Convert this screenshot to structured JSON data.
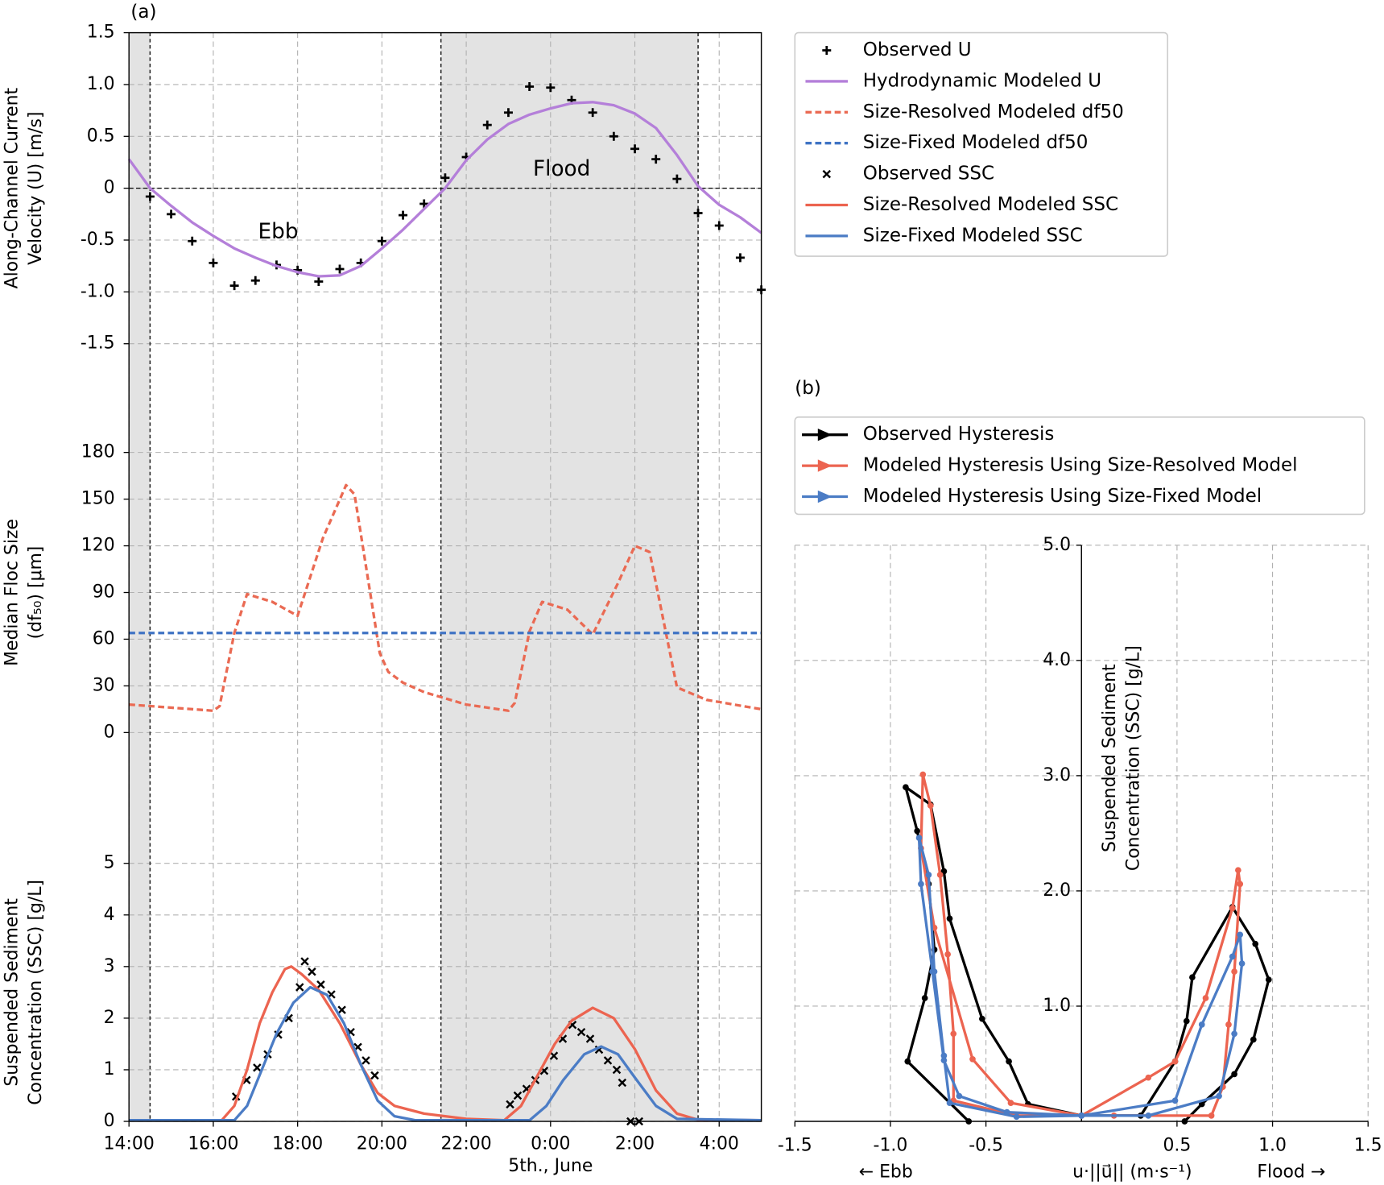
{
  "chart_data": [
    {
      "type": "line",
      "panel_label": "(a)",
      "ylabel": [
        "Along-Channel Current",
        "Velocity (U) [m/s]"
      ],
      "annotations": [
        "Ebb",
        "Flood"
      ],
      "xlim": [
        14,
        29
      ],
      "ylim": [
        -1.5,
        1.5
      ],
      "yticks": [
        1.5,
        {
          "value": 1,
          "label": "1.0"
        },
        0.5,
        0,
        -0.5,
        {
          "value": -1,
          "label": "-1.0"
        },
        -1.5
      ],
      "shaded_spans": [
        [
          14,
          14.5
        ],
        [
          21.4,
          27.5
        ]
      ],
      "vlines": [
        14.5,
        21.4,
        27.5
      ],
      "hline": 0,
      "grid": true,
      "legend": "right",
      "series": [
        {
          "name": "Observed U",
          "color": "#000000",
          "marker": "+",
          "x": [
            14.5,
            15,
            15.5,
            16,
            16.5,
            17,
            17.5,
            18,
            18.5,
            19,
            19.5,
            20,
            20.5,
            21,
            21.5,
            22,
            22.5,
            23,
            23.5,
            24,
            24.5,
            25,
            25.5,
            26,
            26.5,
            27,
            27.5,
            28,
            28.5,
            29
          ],
          "values": [
            -0.08,
            -0.25,
            -0.51,
            -0.72,
            -0.94,
            -0.89,
            -0.74,
            -0.79,
            -0.9,
            -0.78,
            -0.72,
            -0.51,
            -0.26,
            -0.15,
            0.1,
            0.3,
            0.61,
            0.73,
            0.98,
            0.97,
            0.85,
            0.73,
            0.5,
            0.38,
            0.28,
            0.09,
            -0.24,
            -0.36,
            -0.67,
            -0.98
          ]
        },
        {
          "name": "Hydrodynamic Modeled U",
          "color": "#b47fd9",
          "line": "solid",
          "x": [
            14,
            14.5,
            15,
            15.5,
            16,
            16.5,
            17,
            17.5,
            18,
            18.5,
            19,
            19.5,
            20,
            20.5,
            21,
            21.5,
            22,
            22.5,
            23,
            23.5,
            24,
            24.5,
            25,
            25.5,
            26,
            26.5,
            27,
            27.5,
            28,
            28.5,
            29
          ],
          "values": [
            0.28,
            0.0,
            -0.17,
            -0.33,
            -0.46,
            -0.58,
            -0.67,
            -0.75,
            -0.81,
            -0.85,
            -0.84,
            -0.75,
            -0.58,
            -0.4,
            -0.2,
            0.0,
            0.27,
            0.47,
            0.62,
            0.71,
            0.77,
            0.82,
            0.83,
            0.8,
            0.72,
            0.58,
            0.32,
            0.02,
            -0.16,
            -0.28,
            -0.43
          ]
        }
      ]
    },
    {
      "type": "line",
      "ylabel": [
        "Median Floc Size",
        "(df₅₀) [μm]"
      ],
      "xlim": [
        14,
        29
      ],
      "ylim": [
        0,
        180
      ],
      "yticks": [
        0,
        30,
        60,
        90,
        120,
        150,
        180
      ],
      "grid": true,
      "series": [
        {
          "name": "Size-Resolved Modeled df50",
          "color": "#ea6a53",
          "line": "dashed",
          "x": [
            14,
            16,
            16.15,
            16.5,
            16.8,
            17.4,
            18,
            18.6,
            19.15,
            19.35,
            19.95,
            20.15,
            20.5,
            21,
            22,
            23,
            23.15,
            23.5,
            23.8,
            24.4,
            25,
            25.6,
            26,
            26.35,
            27,
            27.7,
            29
          ],
          "values": [
            18,
            14,
            17,
            64,
            89,
            84,
            75,
            125,
            159,
            153,
            51,
            39,
            32,
            26,
            18,
            14,
            19,
            65,
            84,
            79,
            63,
            96,
            120,
            116,
            29,
            21,
            15
          ]
        },
        {
          "name": "Size-Fixed Modeled df50",
          "color": "#3f73c4",
          "line": "dashed",
          "x": [
            14,
            29
          ],
          "values": [
            64,
            64
          ]
        }
      ]
    },
    {
      "type": "line",
      "ylabel": [
        "Suspended Sediment",
        "Concentration (SSC) [g/L]"
      ],
      "xlabel": "5th., June",
      "xlim": [
        14,
        29
      ],
      "ylim": [
        0,
        5
      ],
      "yticks": [
        0,
        1,
        2,
        3,
        4,
        5
      ],
      "xticks": [
        {
          "value": 14,
          "label": "14:00"
        },
        {
          "value": 16,
          "label": "16:00"
        },
        {
          "value": 18,
          "label": "18:00"
        },
        {
          "value": 20,
          "label": "20:00"
        },
        {
          "value": 22,
          "label": "22:00"
        },
        {
          "value": 24,
          "label": "0:00"
        },
        {
          "value": 26,
          "label": "2:00"
        },
        {
          "value": 28,
          "label": "4:00"
        }
      ],
      "grid": true,
      "series": [
        {
          "name": "Observed SSC",
          "color": "#000000",
          "marker": "x",
          "x": [
            16.54,
            16.79,
            17.04,
            17.29,
            17.54,
            17.79,
            18.05,
            18.17,
            18.34,
            18.55,
            18.8,
            19.05,
            19.26,
            19.43,
            19.62,
            19.83,
            23.04,
            23.22,
            23.43,
            23.64,
            23.85,
            24.08,
            24.29,
            24.52,
            24.73,
            24.94,
            25.15,
            25.36,
            25.57,
            25.7,
            25.9,
            26.1
          ],
          "values": [
            0.48,
            0.8,
            1.04,
            1.3,
            1.68,
            2.0,
            2.6,
            3.1,
            2.9,
            2.65,
            2.46,
            2.16,
            1.73,
            1.44,
            1.18,
            0.89,
            0.33,
            0.5,
            0.63,
            0.8,
            0.98,
            1.27,
            1.6,
            1.87,
            1.73,
            1.6,
            1.39,
            1.18,
            1.0,
            0.75,
            0,
            0
          ]
        },
        {
          "name": "Size-Resolved Modeled SSC",
          "color": "#ec6450",
          "line": "solid",
          "x": [
            14,
            16.2,
            16.5,
            16.8,
            17.1,
            17.4,
            17.7,
            17.85,
            18.1,
            18.5,
            19,
            19.5,
            19.9,
            20.3,
            21,
            22,
            22.9,
            23.3,
            23.7,
            24.1,
            24.5,
            25,
            25.5,
            26,
            26.5,
            27,
            27.5,
            29
          ],
          "values": [
            0.02,
            0.02,
            0.3,
            1.0,
            1.9,
            2.5,
            2.95,
            3.0,
            2.85,
            2.55,
            1.9,
            1.1,
            0.55,
            0.3,
            0.15,
            0.05,
            0.02,
            0.3,
            0.9,
            1.5,
            1.95,
            2.2,
            2.0,
            1.4,
            0.6,
            0.15,
            0.03,
            0.02
          ]
        },
        {
          "name": "Size-Fixed Modeled SSC",
          "color": "#4b7cc5",
          "line": "solid",
          "x": [
            14,
            16.5,
            16.8,
            17.1,
            17.5,
            17.9,
            18.3,
            18.7,
            19.1,
            19.5,
            19.9,
            20.3,
            20.8,
            23.5,
            23.9,
            24.3,
            24.8,
            25.2,
            25.6,
            26,
            26.5,
            27,
            29
          ],
          "values": [
            0.02,
            0.02,
            0.3,
            0.9,
            1.7,
            2.3,
            2.6,
            2.45,
            1.9,
            1.1,
            0.4,
            0.1,
            0.02,
            0.02,
            0.3,
            0.8,
            1.3,
            1.45,
            1.3,
            0.85,
            0.3,
            0.05,
            0.02
          ]
        }
      ]
    },
    {
      "type": "line",
      "panel_label": "(b)",
      "xlabel": "u·||u⃗|| (m·s⁻¹)",
      "side_labels": [
        "←  Ebb",
        "Flood →"
      ],
      "ylabel": [
        "Suspended Sediment",
        "Concentration (SSC) [g/L]"
      ],
      "xlim": [
        -1.5,
        1.5
      ],
      "ylim": [
        0,
        5
      ],
      "xticks": [
        -1.5,
        {
          "value": -1,
          "label": "-1.0"
        },
        -0.5,
        0.5,
        {
          "value": 1,
          "label": "1.0"
        },
        1.5
      ],
      "yticks": [
        {
          "value": 1,
          "label": "1.0"
        },
        {
          "value": 2,
          "label": "2.0"
        },
        {
          "value": 3,
          "label": "3.0"
        },
        {
          "value": 4,
          "label": "4.0"
        },
        {
          "value": 5,
          "label": "5.0"
        }
      ],
      "grid": true,
      "legend": "above",
      "series": [
        {
          "name": "Observed Hysteresis",
          "color": "#000000",
          "line": "solid",
          "marker": "o",
          "x": [
            -0.59,
            -0.91,
            -0.82,
            -0.77,
            -0.8,
            -0.86,
            -0.92,
            -0.79,
            -0.72,
            -0.69,
            -0.52,
            -0.38,
            -0.28,
            0,
            0.31,
            0.49,
            0.55,
            0.58,
            0.79,
            0.91,
            0.98,
            0.9,
            0.8,
            0.63,
            0.54
          ],
          "values": [
            0,
            0.52,
            1.07,
            1.49,
            2.06,
            2.52,
            2.9,
            2.75,
            2.17,
            1.76,
            0.89,
            0.52,
            0.15,
            0.05,
            0.05,
            0.52,
            0.87,
            1.25,
            1.86,
            1.54,
            1.23,
            0.71,
            0.41,
            0.15,
            0
          ]
        },
        {
          "name": "Modeled Hysteresis Using Size-Resolved Model",
          "color": "#ec6450",
          "line": "solid",
          "marker": "o",
          "x": [
            0,
            -0.37,
            -0.57,
            -0.77,
            -0.84,
            -0.83,
            -0.79,
            -0.74,
            -0.7,
            -0.67,
            -0.67,
            -0.34,
            0,
            0.35,
            0.49,
            0.65,
            0.79,
            0.82,
            0.83,
            0.8,
            0.77,
            0.74,
            0.68,
            0.17
          ],
          "values": [
            0.05,
            0.16,
            0.54,
            1.68,
            2.37,
            3.01,
            2.74,
            2.14,
            1.45,
            0.76,
            0.18,
            0.05,
            0.05,
            0.38,
            0.52,
            1.07,
            1.85,
            2.18,
            2.06,
            1.3,
            0.84,
            0.3,
            0.05,
            0.05
          ]
        },
        {
          "name": "Modeled Hysteresis Using Size-Fixed Model",
          "color": "#4b7cc5",
          "line": "solid",
          "marker": "o",
          "x": [
            0,
            -0.39,
            -0.64,
            -0.72,
            -0.78,
            -0.84,
            -0.85,
            -0.8,
            -0.77,
            -0.72,
            -0.69,
            -0.34,
            0,
            0.49,
            0.63,
            0.79,
            0.83,
            0.84,
            0.8,
            0.72,
            0.35,
            0
          ],
          "values": [
            0.05,
            0.08,
            0.22,
            0.53,
            1.3,
            2.06,
            2.46,
            2.14,
            1.3,
            0.57,
            0.16,
            0.04,
            0.05,
            0.18,
            0.84,
            1.43,
            1.62,
            1.37,
            0.76,
            0.22,
            0.05,
            0.05
          ]
        }
      ]
    }
  ]
}
